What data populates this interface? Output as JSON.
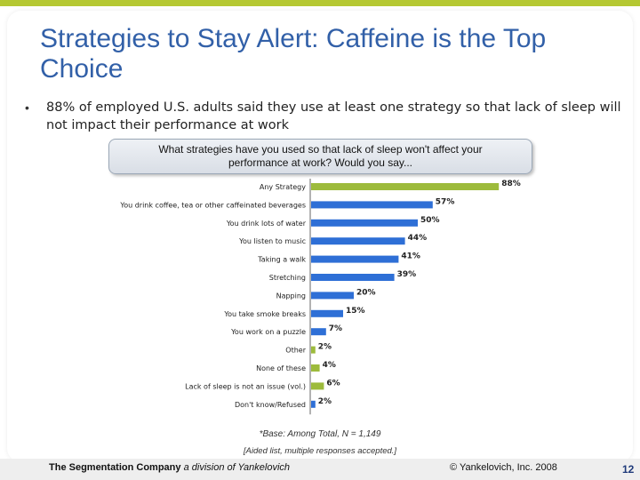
{
  "title": "Strategies to Stay Alert: Caffeine is the Top Choice",
  "bullet": "88% of employed U.S. adults said they use at least one strategy so that lack of sleep will not impact their performance at work",
  "question": "What strategies have you used so that lack of sleep won't affect your performance at work? Would you say...",
  "base_note": "*Base: Among Total, N = 1,149",
  "aided_note": "[Aided list, multiple responses accepted.]",
  "footer": {
    "company": "The Segmentation Company",
    "division": "a division of Yankelovich",
    "copyright": "© Yankelovich, Inc. 2008",
    "page": "12"
  },
  "colors": {
    "title": "#3260a8",
    "bar_blue": "#2e6fd6",
    "bar_green": "#9dbb3c",
    "top_stripe": "#b5c832"
  },
  "chart_data": {
    "type": "bar",
    "orientation": "horizontal",
    "categories": [
      "Any Strategy",
      "You drink coffee, tea or other caffeinated beverages",
      "You drink lots of water",
      "You listen to music",
      "Taking a walk",
      "Stretching",
      "Napping",
      "You take smoke breaks",
      "You work on a puzzle",
      "Other",
      "None of these",
      "Lack of sleep is not an issue (vol.)",
      "Don't know/Refused"
    ],
    "values": [
      88,
      57,
      50,
      44,
      41,
      39,
      20,
      15,
      7,
      2,
      4,
      6,
      2
    ],
    "labels": [
      "88%",
      "57%",
      "50%",
      "44%",
      "41%",
      "39%",
      "20%",
      "15%",
      "7%",
      "2%",
      "4%",
      "6%",
      "2%"
    ],
    "colors": [
      "green",
      "blue",
      "blue",
      "blue",
      "blue",
      "blue",
      "blue",
      "blue",
      "blue",
      "green",
      "green",
      "green",
      "blue"
    ],
    "xlim": [
      0,
      100
    ],
    "grid": false,
    "title": "",
    "xlabel": "",
    "ylabel": ""
  }
}
